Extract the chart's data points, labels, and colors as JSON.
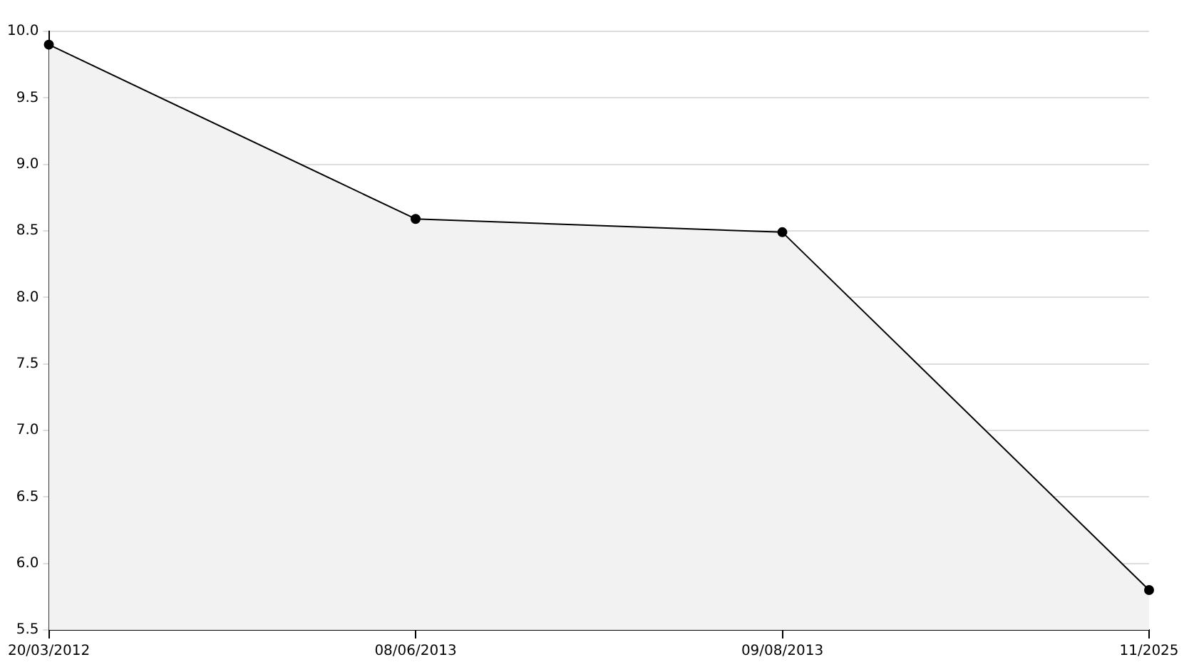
{
  "chart_data": {
    "type": "area",
    "categories": [
      "20/03/2012",
      "08/06/2013",
      "09/08/2013",
      "11/2025"
    ],
    "series": [
      {
        "color": "#000000",
        "values": [
          9.9,
          8.59,
          8.49,
          5.8
        ]
      }
    ],
    "ylim": [
      5.5,
      10.0
    ],
    "yticks": [
      {
        "value": 5.5,
        "label": "5.5"
      },
      {
        "value": 6,
        "label": "6.0"
      },
      {
        "value": 6.5,
        "label": "6.5"
      },
      {
        "value": 7,
        "label": "7.0"
      },
      {
        "value": 7.5,
        "label": "7.5"
      },
      {
        "value": 8,
        "label": "8.0"
      },
      {
        "value": 8.5,
        "label": "8.5"
      },
      {
        "value": 9,
        "label": "9.0"
      },
      {
        "value": 9.5,
        "label": "9.5"
      },
      {
        "value": 10,
        "label": "10.0"
      }
    ],
    "grid": "y",
    "marker": "circle",
    "line_style": "solid"
  }
}
